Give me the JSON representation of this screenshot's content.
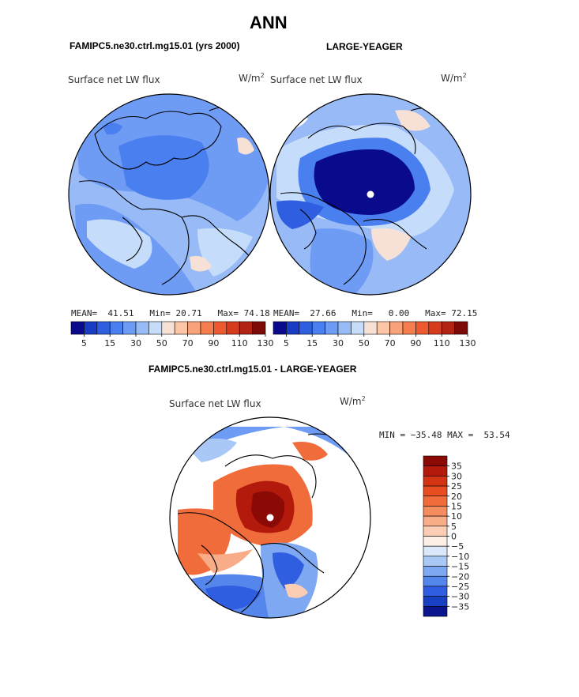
{
  "figure": {
    "title": "ANN"
  },
  "panels": [
    {
      "id": "model",
      "case_title": "FAMIPC5.ne30.ctrl.mg15.01 (yrs 2000)",
      "variable": "Surface net LW flux",
      "units": "W/m",
      "units_sup": "2",
      "stats": {
        "mean_label": "MEAN=",
        "mean": "41.51",
        "min_label": "Min=",
        "min": "20.71",
        "max_label": "Max=",
        "max": "74.18"
      }
    },
    {
      "id": "obs",
      "case_title": "LARGE-YEAGER",
      "variable": "Surface net LW flux",
      "units": "W/m",
      "units_sup": "2",
      "stats": {
        "mean_label": "MEAN=",
        "mean": "27.66",
        "min_label": "Min=",
        "min": "0.00",
        "max_label": "Max=",
        "max": "72.15"
      }
    },
    {
      "id": "diff",
      "case_title": "FAMIPC5.ne30.ctrl.mg15.01 - LARGE-YEAGER",
      "variable": "Surface net LW flux",
      "units": "W/m",
      "units_sup": "2",
      "stats": {
        "min_label": "MIN =",
        "min": "−35.48",
        "max_label": "MAX =",
        "max": "53.54"
      }
    }
  ],
  "chart_data": [
    {
      "type": "heatmap",
      "projection": "north-polar-stereographic",
      "title": "Surface net LW flux",
      "units": "W/m2",
      "colorbar": {
        "orientation": "horizontal",
        "tick_labels": [
          "5",
          "15",
          "30",
          "50",
          "70",
          "90",
          "110",
          "130"
        ],
        "colors": [
          "#0a0a8c",
          "#1a3bc4",
          "#2f5ee0",
          "#4a7ff0",
          "#6e9cf5",
          "#98bbf7",
          "#c6dcfb",
          "#f7e0d5",
          "#fbc5a6",
          "#f9a279",
          "#f57d4e",
          "#ee5a2f",
          "#d63b1e",
          "#b22314",
          "#7d0a09"
        ]
      },
      "stats": {
        "mean": 41.51,
        "min": 20.71,
        "max": 74.18
      }
    },
    {
      "type": "heatmap",
      "projection": "north-polar-stereographic",
      "title": "Surface net LW flux",
      "units": "W/m2",
      "colorbar": {
        "orientation": "horizontal",
        "tick_labels": [
          "5",
          "15",
          "30",
          "50",
          "70",
          "90",
          "110",
          "130"
        ],
        "colors": [
          "#0a0a8c",
          "#1a3bc4",
          "#2f5ee0",
          "#4a7ff0",
          "#6e9cf5",
          "#98bbf7",
          "#c6dcfb",
          "#f7e0d5",
          "#fbc5a6",
          "#f9a279",
          "#f57d4e",
          "#ee5a2f",
          "#d63b1e",
          "#b22314",
          "#7d0a09"
        ]
      },
      "stats": {
        "mean": 27.66,
        "min": 0.0,
        "max": 72.15
      }
    },
    {
      "type": "heatmap",
      "projection": "north-polar-stereographic",
      "title": "Surface net LW flux",
      "units": "W/m2",
      "colorbar": {
        "orientation": "vertical",
        "tick_labels": [
          "35",
          "30",
          "25",
          "20",
          "15",
          "10",
          "5",
          "0",
          "−5",
          "−10",
          "−15",
          "−20",
          "−25",
          "−30",
          "−35"
        ],
        "colors": [
          "#8c0a06",
          "#b41a0c",
          "#d23414",
          "#e84e22",
          "#f06c3a",
          "#f48c5e",
          "#f8ac88",
          "#fbcdb4",
          "#fdeee6",
          "#dbe8fb",
          "#a9c8f6",
          "#7ea8f1",
          "#5586ec",
          "#2f5ee0",
          "#1740c2",
          "#0a148c"
        ]
      },
      "stats": {
        "min": -35.48,
        "max": 53.54
      }
    }
  ]
}
